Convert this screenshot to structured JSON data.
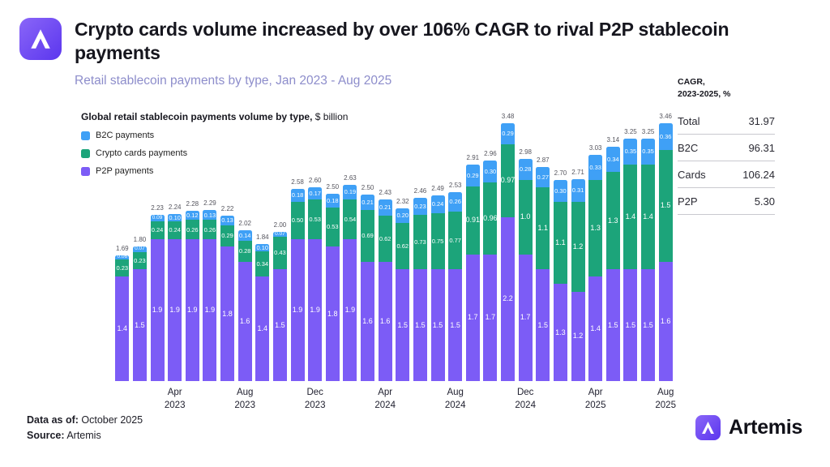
{
  "header": {
    "title": "Crypto cards volume increased by over 106% CAGR to rival P2P stablecoin payments",
    "subtitle": "Retail stablecoin payments by type, Jan 2023 - Aug 2025"
  },
  "chart": {
    "title_bold": "Global retail stablecoin payments volume by type,",
    "title_unit": " $ billion"
  },
  "legend": {
    "items": [
      {
        "label": "B2C payments",
        "slug": "b2c-payments",
        "color": "#3fa0f6"
      },
      {
        "label": "Crypto cards payments",
        "slug": "crypto-cards-payments",
        "color": "#1ca47a"
      },
      {
        "label": "P2P payments",
        "slug": "p2p-payments",
        "color": "#7c5cf6"
      }
    ]
  },
  "chart_data": {
    "type": "bar",
    "stacked": true,
    "title": "Global retail stablecoin payments volume by type, $ billion",
    "unit": "$ billion",
    "grid": false,
    "legend_position": "top-left",
    "ylim": [
      0,
      3.6
    ],
    "categories": [
      "Jan 2023",
      "Feb 2023",
      "Mar 2023",
      "Apr 2023",
      "May 2023",
      "Jun 2023",
      "Jul 2023",
      "Aug 2023",
      "Sep 2023",
      "Oct 2023",
      "Nov 2023",
      "Dec 2023",
      "Jan 2024",
      "Feb 2024",
      "Mar 2024",
      "Apr 2024",
      "May 2024",
      "Jun 2024",
      "Jul 2024",
      "Aug 2024",
      "Sep 2024",
      "Oct 2024",
      "Nov 2024",
      "Dec 2024",
      "Jan 2025",
      "Feb 2025",
      "Mar 2025",
      "Apr 2025",
      "May 2025",
      "Jun 2025",
      "Jul 2025",
      "Aug 2025"
    ],
    "series": [
      {
        "name": "P2P payments",
        "slug": "p2p-payments",
        "color": "#7c5cf6",
        "values": [
          1.4,
          1.5,
          1.9,
          1.9,
          1.9,
          1.9,
          1.8,
          1.6,
          1.4,
          1.5,
          1.9,
          1.9,
          1.8,
          1.9,
          1.6,
          1.6,
          1.5,
          1.5,
          1.5,
          1.5,
          1.7,
          1.7,
          2.2,
          1.7,
          1.5,
          1.3,
          1.2,
          1.4,
          1.5,
          1.5,
          1.5,
          1.6
        ],
        "labels": [
          "1.4",
          "1.5",
          "1.9",
          "1.9",
          "1.9",
          "1.9",
          "1.8",
          "1.6",
          "1.4",
          "1.5",
          "1.9",
          "1.9",
          "1.8",
          "1.9",
          "1.6",
          "1.6",
          "1.5",
          "1.5",
          "1.5",
          "1.5",
          "1.7",
          "1.7",
          "2.2",
          "1.7",
          "1.5",
          "1.3",
          "1.2",
          "1.4",
          "1.5",
          "1.5",
          "1.5",
          "1.6"
        ]
      },
      {
        "name": "Crypto cards payments",
        "slug": "crypto-cards-payments",
        "color": "#1ca47a",
        "values": [
          0.23,
          0.23,
          0.24,
          0.24,
          0.26,
          0.26,
          0.29,
          0.28,
          0.34,
          0.43,
          0.5,
          0.53,
          0.53,
          0.54,
          0.69,
          0.62,
          0.62,
          0.73,
          0.75,
          0.77,
          0.91,
          0.96,
          0.97,
          1.0,
          1.1,
          1.1,
          1.2,
          1.3,
          1.3,
          1.4,
          1.4,
          1.5
        ],
        "labels": [
          "0.23",
          "0.23",
          "0.24",
          "0.24",
          "0.26",
          "0.26",
          "0.29",
          "0.28",
          "0.34",
          "0.43",
          "0.50",
          "0.53",
          "0.53",
          "0.54",
          "0.69",
          "0.62",
          "0.62",
          "0.73",
          "0.75",
          "0.77",
          "0.91",
          "0.96",
          "0.97",
          "1.0",
          "1.1",
          "1.1",
          "1.2",
          "1.3",
          "1.3",
          "1.4",
          "1.4",
          "1.5"
        ]
      },
      {
        "name": "B2C payments",
        "slug": "b2c-payments",
        "color": "#3fa0f6",
        "values": [
          0.06,
          0.07,
          0.09,
          0.1,
          0.12,
          0.13,
          0.13,
          0.14,
          0.1,
          0.07,
          0.18,
          0.17,
          0.18,
          0.19,
          0.21,
          0.21,
          0.2,
          0.23,
          0.24,
          0.26,
          0.29,
          0.3,
          0.29,
          0.28,
          0.27,
          0.3,
          0.31,
          0.33,
          0.34,
          0.35,
          0.35,
          0.36
        ],
        "labels": [
          "0.06",
          "0.07",
          "0.09",
          "0.10",
          "0.12",
          "0.13",
          "0.13",
          "0.14",
          "0.10",
          "0.07",
          "0.18",
          "0.17",
          "0.18",
          "0.19",
          "0.21",
          "0.21",
          "0.20",
          "0.23",
          "0.24",
          "0.26",
          "0.29",
          "0.30",
          "0.29",
          "0.28",
          "0.27",
          "0.30",
          "0.31",
          "0.33",
          "0.34",
          "0.35",
          "0.35",
          "0.36"
        ]
      }
    ],
    "totals": [
      1.69,
      1.8,
      2.23,
      2.24,
      2.28,
      2.29,
      2.22,
      2.02,
      1.84,
      2.0,
      2.58,
      2.6,
      2.5,
      2.63,
      2.5,
      2.43,
      2.32,
      2.46,
      2.49,
      2.53,
      2.91,
      2.96,
      3.48,
      2.98,
      2.87,
      2.7,
      2.71,
      3.03,
      3.14,
      3.25,
      3.25,
      3.46
    ],
    "total_labels": [
      "1.69",
      "1.80",
      "2.23",
      "2.24",
      "2.28",
      "2.29",
      "2.22",
      "2.02",
      "1.84",
      "2.00",
      "2.58",
      "2.60",
      "2.50",
      "2.63",
      "2.50",
      "2.43",
      "2.32",
      "2.46",
      "2.49",
      "2.53",
      "2.91",
      "2.96",
      "3.48",
      "2.98",
      "2.87",
      "2.70",
      "2.71",
      "3.03",
      "3.14",
      "3.25",
      "3.25",
      "3.46"
    ],
    "x_ticks": [
      {
        "index": 3,
        "line1": "Apr",
        "line2": "2023"
      },
      {
        "index": 7,
        "line1": "Aug",
        "line2": "2023"
      },
      {
        "index": 11,
        "line1": "Dec",
        "line2": "2023"
      },
      {
        "index": 15,
        "line1": "Apr",
        "line2": "2024"
      },
      {
        "index": 19,
        "line1": "Aug",
        "line2": "2024"
      },
      {
        "index": 23,
        "line1": "Dec",
        "line2": "2024"
      },
      {
        "index": 27,
        "line1": "Apr",
        "line2": "2025"
      },
      {
        "index": 31,
        "line1": "Aug",
        "line2": "2025"
      }
    ]
  },
  "cagr_panel": {
    "heading_line1": "CAGR,",
    "heading_line2": "2023-2025, %",
    "rows": [
      {
        "label": "Total",
        "value": "31.97"
      },
      {
        "label": "B2C",
        "value": "96.31"
      },
      {
        "label": "Cards",
        "value": "106.24"
      },
      {
        "label": "P2P",
        "value": "5.30"
      }
    ]
  },
  "footer": {
    "data_as_of_label": "Data as of:",
    "data_as_of_value": " October 2025",
    "source_label": "Source:",
    "source_value": " Artemis",
    "brand": "Artemis"
  },
  "colors": {
    "b2c": "#3fa0f6",
    "cards": "#1ca47a",
    "p2p": "#7c5cf6",
    "accent_purple": "#6a45f0",
    "subtitle": "#8d8dcb"
  }
}
